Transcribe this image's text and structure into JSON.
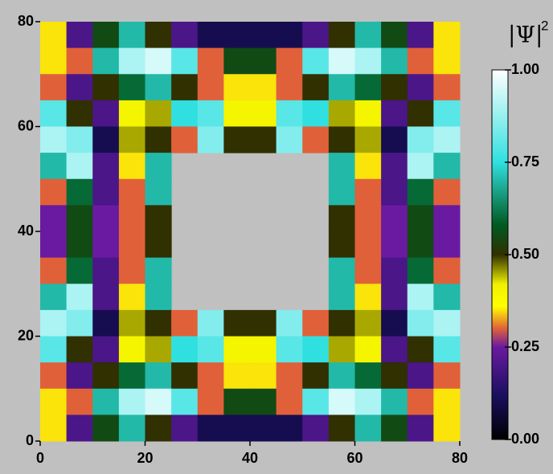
{
  "chart_data": {
    "type": "heatmap",
    "x": [
      2.5,
      7.5,
      12.5,
      17.5,
      22.5,
      27.5,
      32.5,
      37.5,
      42.5,
      47.5,
      52.5,
      57.5,
      62.5,
      67.5,
      72.5,
      77.5
    ],
    "y": [
      77.5,
      72.5,
      67.5,
      62.5,
      57.5,
      52.5,
      47.5,
      42.5,
      37.5,
      32.5,
      27.5,
      22.5,
      17.5,
      12.5,
      7.5,
      2.5
    ],
    "z": [
      [
        0.35,
        0.2,
        0.55,
        0.7,
        0.5,
        0.2,
        0.1,
        0.1,
        0.1,
        0.1,
        0.2,
        0.5,
        0.7,
        0.55,
        0.2,
        0.35
      ],
      [
        0.35,
        0.3,
        0.7,
        0.9,
        0.95,
        0.8,
        0.3,
        0.55,
        0.55,
        0.3,
        0.8,
        0.95,
        0.9,
        0.7,
        0.3,
        0.35
      ],
      [
        0.3,
        0.2,
        0.5,
        0.6,
        0.7,
        0.5,
        0.3,
        0.35,
        0.35,
        0.3,
        0.5,
        0.7,
        0.6,
        0.5,
        0.2,
        0.3
      ],
      [
        0.8,
        0.5,
        0.2,
        0.4,
        0.45,
        0.75,
        0.8,
        0.4,
        0.4,
        0.8,
        0.75,
        0.45,
        0.4,
        0.2,
        0.5,
        0.8
      ],
      [
        0.9,
        0.85,
        0.1,
        0.45,
        0.5,
        0.3,
        0.85,
        0.5,
        0.5,
        0.85,
        0.3,
        0.5,
        0.45,
        0.1,
        0.85,
        0.9
      ],
      [
        0.7,
        0.9,
        0.2,
        0.35,
        0.7,
        null,
        null,
        null,
        null,
        null,
        null,
        0.7,
        0.35,
        0.2,
        0.9,
        0.7
      ],
      [
        0.3,
        0.6,
        0.2,
        0.3,
        0.7,
        null,
        null,
        null,
        null,
        null,
        null,
        0.7,
        0.3,
        0.2,
        0.6,
        0.3
      ],
      [
        0.25,
        0.55,
        0.25,
        0.3,
        0.5,
        null,
        null,
        null,
        null,
        null,
        null,
        0.5,
        0.3,
        0.25,
        0.55,
        0.25
      ],
      [
        0.25,
        0.55,
        0.25,
        0.3,
        0.5,
        null,
        null,
        null,
        null,
        null,
        null,
        0.5,
        0.3,
        0.25,
        0.55,
        0.25
      ],
      [
        0.3,
        0.6,
        0.2,
        0.3,
        0.7,
        null,
        null,
        null,
        null,
        null,
        null,
        0.7,
        0.3,
        0.2,
        0.6,
        0.3
      ],
      [
        0.7,
        0.9,
        0.2,
        0.35,
        0.7,
        null,
        null,
        null,
        null,
        null,
        null,
        0.7,
        0.35,
        0.2,
        0.9,
        0.7
      ],
      [
        0.9,
        0.85,
        0.1,
        0.45,
        0.5,
        0.3,
        0.85,
        0.5,
        0.5,
        0.85,
        0.3,
        0.5,
        0.45,
        0.1,
        0.85,
        0.9
      ],
      [
        0.8,
        0.5,
        0.2,
        0.4,
        0.45,
        0.75,
        0.8,
        0.4,
        0.4,
        0.8,
        0.75,
        0.45,
        0.4,
        0.2,
        0.5,
        0.8
      ],
      [
        0.3,
        0.2,
        0.5,
        0.6,
        0.7,
        0.5,
        0.3,
        0.35,
        0.35,
        0.3,
        0.5,
        0.7,
        0.6,
        0.5,
        0.2,
        0.3
      ],
      [
        0.35,
        0.3,
        0.7,
        0.9,
        0.95,
        0.8,
        0.3,
        0.55,
        0.55,
        0.3,
        0.8,
        0.95,
        0.9,
        0.7,
        0.3,
        0.35
      ],
      [
        0.35,
        0.2,
        0.55,
        0.7,
        0.5,
        0.2,
        0.1,
        0.1,
        0.1,
        0.1,
        0.2,
        0.5,
        0.7,
        0.55,
        0.2,
        0.35
      ]
    ],
    "xlim": [
      0,
      80
    ],
    "ylim": [
      0,
      80
    ],
    "xticks": [
      0,
      20,
      40,
      60,
      80
    ],
    "yticks": [
      0,
      20,
      40,
      60,
      80
    ],
    "zlim": [
      0,
      1
    ],
    "colorbar_ticks": [
      {
        "value": 0,
        "label": "0.00"
      },
      {
        "value": 0.25,
        "label": "0.25"
      },
      {
        "value": 0.5,
        "label": "0.50"
      },
      {
        "value": 0.75,
        "label": "0.75"
      },
      {
        "value": 1,
        "label": "1.00"
      }
    ],
    "colorbar_label": "|Ψ|",
    "colorbar_label_power": "2",
    "colorscale": [
      [
        0,
        "#000000"
      ],
      [
        0.12,
        "#1a1060"
      ],
      [
        0.25,
        "#6a1aa0"
      ],
      [
        0.3,
        "#e0603a"
      ],
      [
        0.36,
        "#ffff00"
      ],
      [
        0.42,
        "#f0f000"
      ],
      [
        0.5,
        "#303000"
      ],
      [
        0.58,
        "#005a20"
      ],
      [
        0.75,
        "#30e0e0"
      ],
      [
        1,
        "#ffffff"
      ]
    ]
  }
}
